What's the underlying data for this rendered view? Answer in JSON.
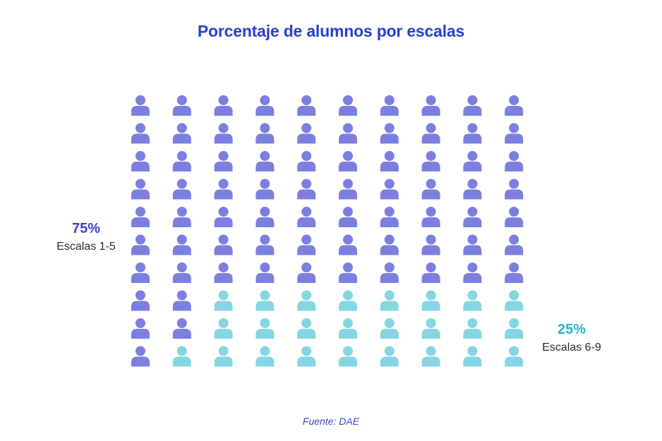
{
  "title": "Porcentaje de alumnos por escalas",
  "colors": {
    "title": "#2a3fd0",
    "group_a": "#7b7fe0",
    "group_b": "#85d6e2",
    "pct_a": "#3a44c8",
    "pct_b": "#29b7c6",
    "source": "#3a48c8"
  },
  "chart_data": {
    "type": "waffle",
    "title": "Porcentaje de alumnos por escalas",
    "total_icons": 100,
    "grid": {
      "rows": 10,
      "columns": 10
    },
    "icon": "person-icon",
    "series": [
      {
        "name": "Escalas 1-5",
        "percent_label": "75%",
        "value": 75
      },
      {
        "name": "Escalas 6-9",
        "percent_label": "25%",
        "value": 25
      }
    ]
  },
  "labels": {
    "left": {
      "percent": "75%",
      "description": "Escalas 1-5"
    },
    "right": {
      "percent": "25%",
      "description": "Escalas 6-9"
    }
  },
  "source": "Fuente: DAE"
}
